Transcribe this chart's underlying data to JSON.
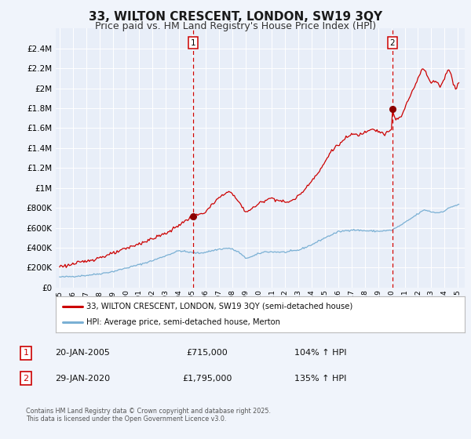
{
  "title": "33, WILTON CRESCENT, LONDON, SW19 3QY",
  "subtitle": "Price paid vs. HM Land Registry's House Price Index (HPI)",
  "title_fontsize": 11,
  "subtitle_fontsize": 9,
  "bg_color": "#f0f4fb",
  "plot_bg_color": "#e8eef8",
  "grid_color": "#ffffff",
  "line1_color": "#cc0000",
  "line2_color": "#7ab0d4",
  "vline_color": "#cc0000",
  "marker_color": "#8b0000",
  "legend_label1": "33, WILTON CRESCENT, LONDON, SW19 3QY (semi-detached house)",
  "legend_label2": "HPI: Average price, semi-detached house, Merton",
  "annotation1_date": "20-JAN-2005",
  "annotation2_date": "29-JAN-2020",
  "annotation1_price": "£715,000",
  "annotation2_price": "£1,795,000",
  "annotation1_hpi": "104% ↑ HPI",
  "annotation2_hpi": "135% ↑ HPI",
  "vline1_x": 2005.05,
  "vline2_x": 2020.07,
  "marker1_x": 2005.05,
  "marker1_y": 715000,
  "marker2_x": 2020.07,
  "marker2_y": 1795000,
  "ylim": [
    0,
    2600000
  ],
  "xlim": [
    1994.7,
    2025.5
  ],
  "yticks": [
    0,
    200000,
    400000,
    600000,
    800000,
    1000000,
    1200000,
    1400000,
    1600000,
    1800000,
    2000000,
    2200000,
    2400000
  ],
  "footer": "Contains HM Land Registry data © Crown copyright and database right 2025.\nThis data is licensed under the Open Government Licence v3.0."
}
